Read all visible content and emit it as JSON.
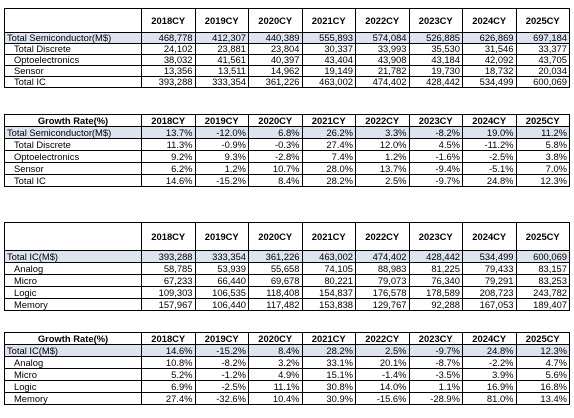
{
  "years": [
    "2018CY",
    "2019CY",
    "2020CY",
    "2021CY",
    "2022CY",
    "2023CY",
    "2024CY",
    "2025CY"
  ],
  "tables": [
    {
      "header_label": "",
      "rows": [
        {
          "label": "Total Semiconductor(M$)",
          "total": true,
          "values": [
            "468,778",
            "412,307",
            "440,389",
            "555,893",
            "574,084",
            "526,885",
            "626,869",
            "697,184"
          ]
        },
        {
          "label": "Total Discrete",
          "values": [
            "24,102",
            "23,881",
            "23,804",
            "30,337",
            "33,993",
            "35,530",
            "31,546",
            "33,377"
          ]
        },
        {
          "label": "Optoelectronics",
          "values": [
            "38,032",
            "41,561",
            "40,397",
            "43,404",
            "43,908",
            "43,184",
            "42,092",
            "43,705"
          ]
        },
        {
          "label": "Sensor",
          "values": [
            "13,356",
            "13,511",
            "14,962",
            "19,149",
            "21,782",
            "19,730",
            "18,732",
            "20,034"
          ]
        },
        {
          "label": "Total IC",
          "values": [
            "393,288",
            "333,354",
            "361,226",
            "463,002",
            "474,402",
            "428,442",
            "534,499",
            "600,069"
          ]
        }
      ]
    },
    {
      "header_label": "Growth Rate(%)",
      "rows": [
        {
          "label": "Total Semiconductor(M$)",
          "total": true,
          "values": [
            "13.7%",
            "-12.0%",
            "6.8%",
            "26.2%",
            "3.3%",
            "-8.2%",
            "19.0%",
            "11.2%"
          ]
        },
        {
          "label": "Total Discrete",
          "values": [
            "11.3%",
            "-0.9%",
            "-0.3%",
            "27.4%",
            "12.0%",
            "4.5%",
            "-11.2%",
            "5.8%"
          ]
        },
        {
          "label": "Optoelectronics",
          "values": [
            "9.2%",
            "9.3%",
            "-2.8%",
            "7.4%",
            "1.2%",
            "-1.6%",
            "-2.5%",
            "3.8%"
          ]
        },
        {
          "label": "Sensor",
          "values": [
            "6.2%",
            "1.2%",
            "10.7%",
            "28.0%",
            "13.7%",
            "-9.4%",
            "-5.1%",
            "7.0%"
          ]
        },
        {
          "label": "Total IC",
          "values": [
            "14.6%",
            "-15.2%",
            "8.4%",
            "28.2%",
            "2.5%",
            "-9.7%",
            "24.8%",
            "12.3%"
          ]
        }
      ]
    },
    {
      "header_label": "",
      "rows": [
        {
          "label": "Total IC(M$)",
          "total": true,
          "values": [
            "393,288",
            "333,354",
            "361,226",
            "463,002",
            "474,402",
            "428,442",
            "534,499",
            "600,069"
          ]
        },
        {
          "label": "Analog",
          "values": [
            "58,785",
            "53,939",
            "55,658",
            "74,105",
            "88,983",
            "81,225",
            "79,433",
            "83,157"
          ]
        },
        {
          "label": "Micro",
          "values": [
            "67,233",
            "66,440",
            "69,678",
            "80,221",
            "79,073",
            "76,340",
            "79,291",
            "83,253"
          ]
        },
        {
          "label": "Logic",
          "values": [
            "109,303",
            "106,535",
            "118,408",
            "154,837",
            "176,578",
            "178,589",
            "208,723",
            "243,782"
          ]
        },
        {
          "label": "Memory",
          "values": [
            "157,967",
            "106,440",
            "117,482",
            "153,838",
            "129,767",
            "92,288",
            "167,053",
            "189,407"
          ]
        }
      ]
    },
    {
      "header_label": "Growth Rate(%)",
      "rows": [
        {
          "label": "Total IC(M$)",
          "total": true,
          "values": [
            "14.6%",
            "-15.2%",
            "8.4%",
            "28.2%",
            "2.5%",
            "-9.7%",
            "24.8%",
            "12.3%"
          ]
        },
        {
          "label": "Analog",
          "values": [
            "10.8%",
            "-8.2%",
            "3.2%",
            "33.1%",
            "20.1%",
            "-8.7%",
            "-2.2%",
            "4.7%"
          ]
        },
        {
          "label": "Micro",
          "values": [
            "5.2%",
            "-1.2%",
            "4.9%",
            "15.1%",
            "-1.4%",
            "-3.5%",
            "3.9%",
            "5.6%"
          ]
        },
        {
          "label": "Logic",
          "values": [
            "6.9%",
            "-2.5%",
            "11.1%",
            "30.8%",
            "14.0%",
            "1.1%",
            "16.9%",
            "16.8%"
          ]
        },
        {
          "label": "Memory",
          "values": [
            "27.4%",
            "-32.6%",
            "10.4%",
            "30.9%",
            "-15.6%",
            "-28.9%",
            "81.0%",
            "13.4%"
          ]
        }
      ]
    }
  ]
}
